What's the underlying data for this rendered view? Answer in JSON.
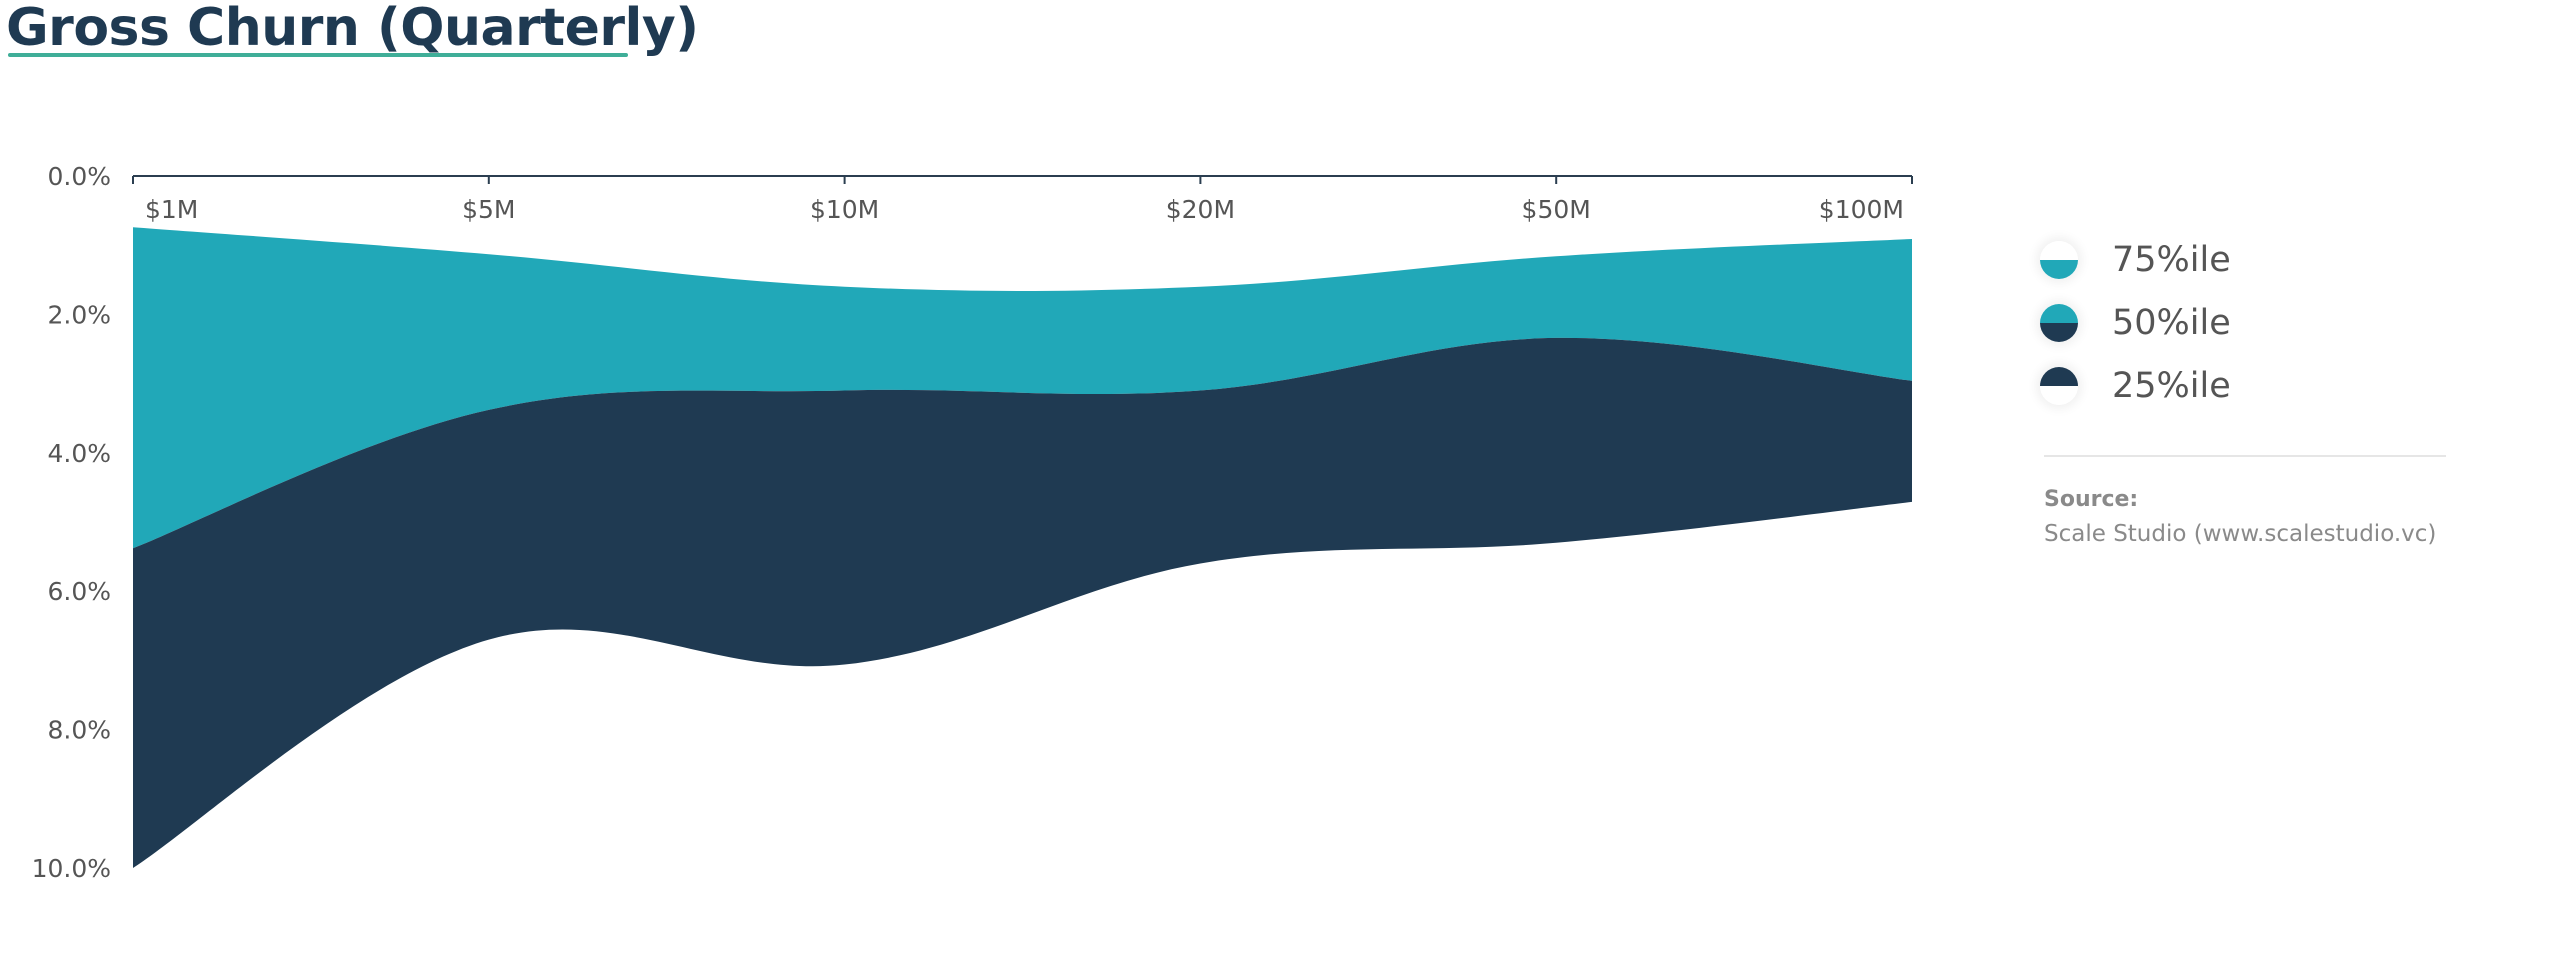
{
  "title": "Gross Churn (Quarterly)",
  "colors": {
    "title": "#1f3a52",
    "title_underline": "#3fae98",
    "band_75_50": "#21a8b8",
    "band_50_25": "#1f3a52",
    "axis": "#2b3e50",
    "tick_text": "#555555",
    "source_text": "#8a8a8a"
  },
  "legend": {
    "items": [
      {
        "label": "75%ile",
        "top": "#ffffff",
        "bottom": "#21a8b8"
      },
      {
        "label": "50%ile",
        "top": "#21a8b8",
        "bottom": "#1f3a52"
      },
      {
        "label": "25%ile",
        "top": "#1f3a52",
        "bottom": "#ffffff"
      }
    ]
  },
  "source": {
    "label": "Source:",
    "text": "Scale Studio (www.scalestudio.vc)"
  },
  "chart_data": {
    "type": "area",
    "title": "Gross Churn (Quarterly)",
    "xlabel": "",
    "ylabel": "",
    "categories": [
      "$1M",
      "$5M",
      "$10M",
      "$20M",
      "$50M",
      "$100M"
    ],
    "y_ticks": [
      "0.0%",
      "2.0%",
      "4.0%",
      "6.0%",
      "8.0%",
      "10.0%"
    ],
    "ylim": [
      0,
      10
    ],
    "y_inverted": true,
    "x_axis_position": "top",
    "grid": false,
    "legend_position": "right",
    "series": [
      {
        "name": "75%ile",
        "values": [
          0.74,
          1.13,
          1.6,
          1.6,
          1.16,
          0.91
        ]
      },
      {
        "name": "50%ile",
        "values": [
          5.38,
          3.38,
          3.1,
          3.1,
          2.34,
          2.96
        ]
      },
      {
        "name": "25%ile",
        "values": [
          10.0,
          6.7,
          7.06,
          5.6,
          5.3,
          4.71
        ]
      }
    ],
    "annotations": []
  }
}
